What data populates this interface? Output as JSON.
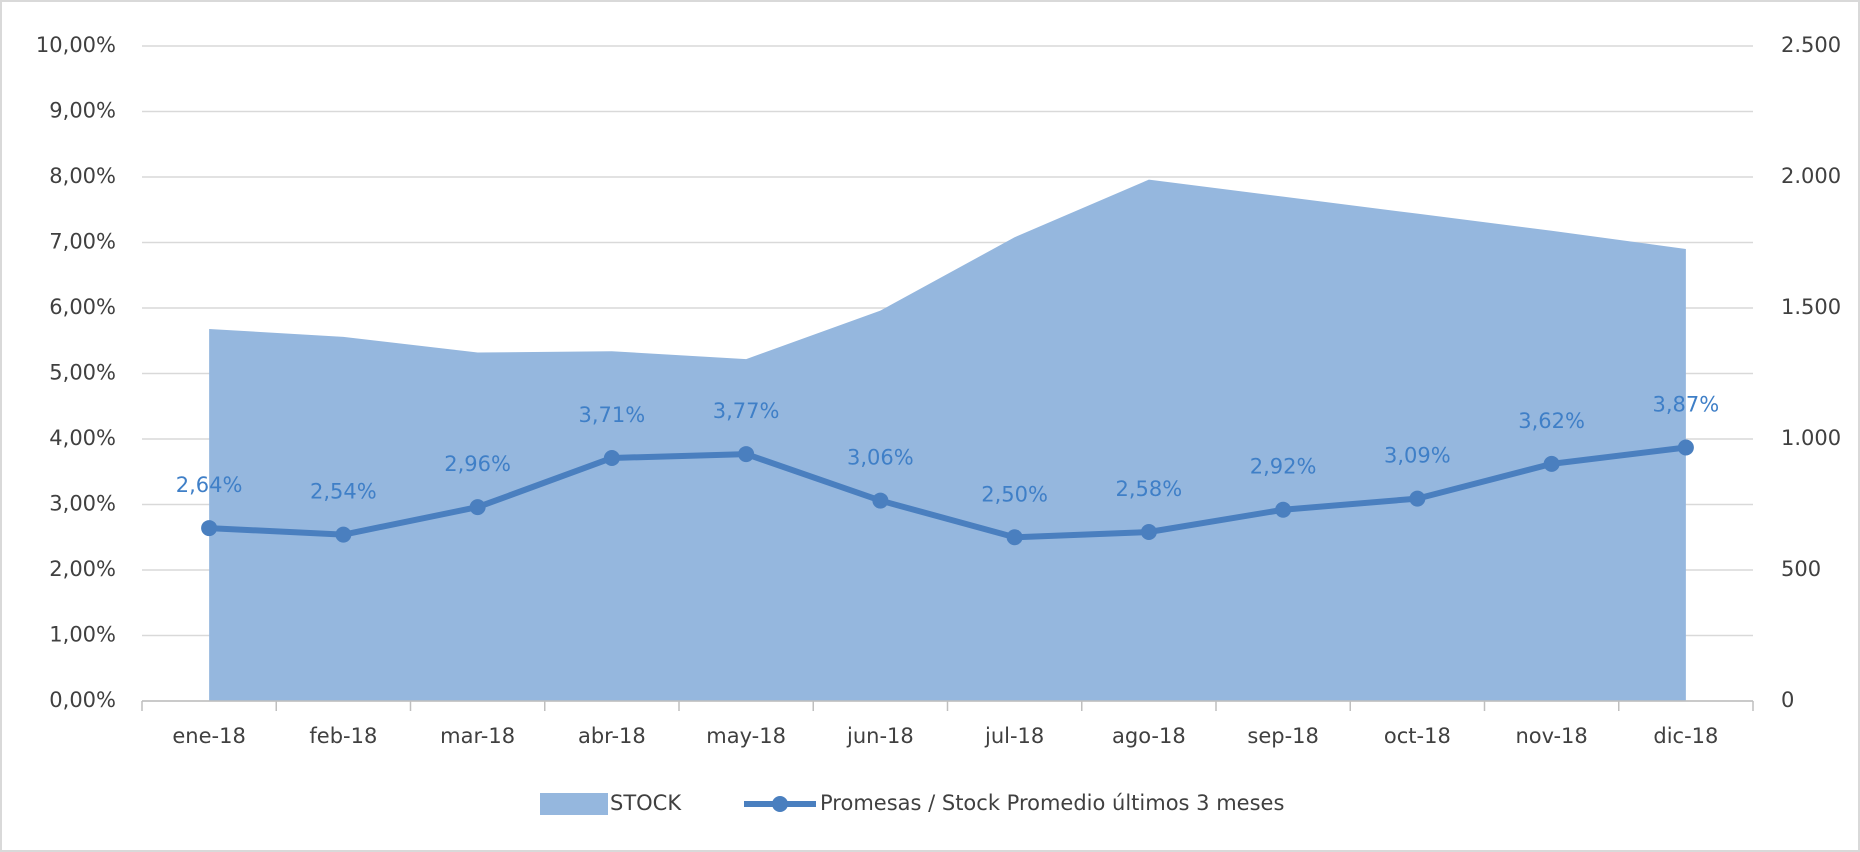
{
  "chart_data": {
    "type": "area-line",
    "categories": [
      "ene-18",
      "feb-18",
      "mar-18",
      "abr-18",
      "may-18",
      "jun-18",
      "jul-18",
      "ago-18",
      "sep-18",
      "oct-18",
      "nov-18",
      "dic-18"
    ],
    "series": [
      {
        "name": "STOCK",
        "type": "area",
        "axis": "y2",
        "color": "#95b7de",
        "values": [
          1420,
          1390,
          1330,
          1335,
          1305,
          1490,
          1770,
          1990,
          1925,
          1860,
          1795,
          1725
        ]
      },
      {
        "name": "Promesas / Stock Promedio últimos 3 meses",
        "type": "line",
        "color": "#4a7fbf",
        "values": [
          2.64,
          2.54,
          2.96,
          3.71,
          3.77,
          3.06,
          2.5,
          2.58,
          2.92,
          3.09,
          3.62,
          3.87
        ],
        "value_labels": [
          "2,64%",
          "2,54%",
          "2,96%",
          "3,71%",
          "3,77%",
          "3,06%",
          "2,50%",
          "2,58%",
          "2,92%",
          "3,09%",
          "3,62%",
          "3,87%"
        ]
      }
    ],
    "ylim": [
      0,
      10
    ],
    "yticks": [
      {
        "value": 0,
        "label": "0,00%"
      },
      {
        "value": 1,
        "label": "1,00%"
      },
      {
        "value": 2,
        "label": "2,00%"
      },
      {
        "value": 3,
        "label": "3,00%"
      },
      {
        "value": 4,
        "label": "4,00%"
      },
      {
        "value": 5,
        "label": "5,00%"
      },
      {
        "value": 6,
        "label": "6,00%"
      },
      {
        "value": 7,
        "label": "7,00%"
      },
      {
        "value": 8,
        "label": "8,00%"
      },
      {
        "value": 9,
        "label": "9,00%"
      },
      {
        "value": 10,
        "label": "10,00%"
      }
    ],
    "y2lim": [
      0,
      2500
    ],
    "y2ticks": [
      0,
      500,
      {
        "value": 1000,
        "label": "1.000"
      },
      {
        "value": 1500,
        "label": "1.500"
      },
      {
        "value": 2000,
        "label": "2.000"
      },
      {
        "value": 2500,
        "label": "2.500"
      }
    ],
    "grid": true,
    "legend": "bottom"
  }
}
